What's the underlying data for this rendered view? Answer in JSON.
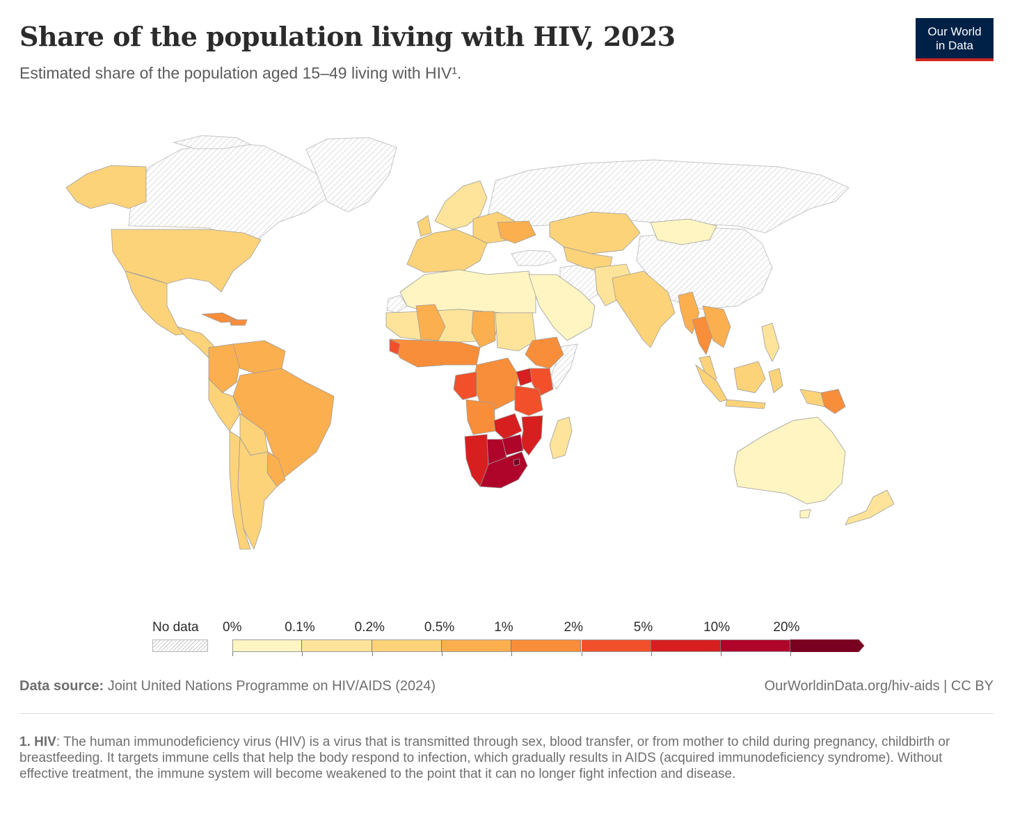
{
  "header": {
    "title": "Share of the population living with HIV, 2023",
    "subtitle": "Estimated share of the population aged 15–49 living with HIV¹."
  },
  "logo": {
    "line1": "Our World",
    "line2": "in Data"
  },
  "colors": {
    "no_data": "#e6e6e6",
    "bins": [
      "#fff5c2",
      "#fee49a",
      "#fdd37a",
      "#fcaf4f",
      "#f98e3a",
      "#f1502b",
      "#d71f1f",
      "#b0052a",
      "#790021"
    ],
    "border": "#b5b5b5"
  },
  "legend": {
    "no_data_label": "No data",
    "ticks": [
      "0%",
      "0.1%",
      "0.2%",
      "0.5%",
      "1%",
      "2%",
      "5%",
      "10%",
      "20%"
    ]
  },
  "map_data": {
    "no_data_regions": [
      "Canada",
      "Greenland",
      "Russia",
      "China",
      "Turkey",
      "Iran",
      "Somalia"
    ],
    "regions": [
      {
        "name": "United States",
        "bin": 2
      },
      {
        "name": "Alaska",
        "bin": 2
      },
      {
        "name": "Mexico",
        "bin": 2
      },
      {
        "name": "Central America",
        "bin": 2
      },
      {
        "name": "Caribbean",
        "bin": 4
      },
      {
        "name": "Venezuela & Guyanas",
        "bin": 3
      },
      {
        "name": "Colombia",
        "bin": 3
      },
      {
        "name": "Peru",
        "bin": 2
      },
      {
        "name": "Brazil",
        "bin": 3
      },
      {
        "name": "Bolivia",
        "bin": 2
      },
      {
        "name": "Paraguay & Uruguay",
        "bin": 3
      },
      {
        "name": "Argentina",
        "bin": 2
      },
      {
        "name": "Chile",
        "bin": 2
      },
      {
        "name": "Western Europe",
        "bin": 2
      },
      {
        "name": "Scandinavia",
        "bin": 1
      },
      {
        "name": "Eastern Europe",
        "bin": 2
      },
      {
        "name": "Ukraine",
        "bin": 3
      },
      {
        "name": "Kazakhstan",
        "bin": 2
      },
      {
        "name": "Mongolia",
        "bin": 0
      },
      {
        "name": "North Africa",
        "bin": 0
      },
      {
        "name": "Arabian Peninsula",
        "bin": 0
      },
      {
        "name": "Sahel",
        "bin": 1
      },
      {
        "name": "Mali",
        "bin": 3
      },
      {
        "name": "Chad",
        "bin": 3
      },
      {
        "name": "Sudan",
        "bin": 1
      },
      {
        "name": "West Africa",
        "bin": 4
      },
      {
        "name": "Central Africa",
        "bin": 4
      },
      {
        "name": "Gabon & Congo",
        "bin": 5
      },
      {
        "name": "Ethiopia",
        "bin": 4
      },
      {
        "name": "Uganda",
        "bin": 6
      },
      {
        "name": "Kenya",
        "bin": 5
      },
      {
        "name": "Tanzania",
        "bin": 5
      },
      {
        "name": "Angola",
        "bin": 4
      },
      {
        "name": "Zambia",
        "bin": 6
      },
      {
        "name": "Mozambique",
        "bin": 6
      },
      {
        "name": "Malawi",
        "bin": 6
      },
      {
        "name": "Zimbabwe",
        "bin": 7
      },
      {
        "name": "Namibia",
        "bin": 6
      },
      {
        "name": "Botswana",
        "bin": 7
      },
      {
        "name": "South Africa",
        "bin": 7
      },
      {
        "name": "Eswatini",
        "bin": 8
      },
      {
        "name": "Madagascar",
        "bin": 1
      },
      {
        "name": "Afghanistan & Pakistan",
        "bin": 1
      },
      {
        "name": "India",
        "bin": 2
      },
      {
        "name": "Myanmar",
        "bin": 3
      },
      {
        "name": "Thailand",
        "bin": 4
      },
      {
        "name": "Indochina",
        "bin": 3
      },
      {
        "name": "Malaysia",
        "bin": 2
      },
      {
        "name": "Indonesia",
        "bin": 2
      },
      {
        "name": "Philippines",
        "bin": 1
      },
      {
        "name": "Papua New Guinea",
        "bin": 4
      },
      {
        "name": "Australia",
        "bin": 0
      },
      {
        "name": "New Zealand",
        "bin": 1
      }
    ]
  },
  "footer": {
    "source_label": "Data source:",
    "source_text": "Joint United Nations Programme on HIV/AIDS (2024)",
    "url": "OurWorldinData.org/hiv-aids | CC BY",
    "note_label": "1. HIV",
    "note_text": ": The human immunodeficiency virus (HIV) is a virus that is transmitted through sex, blood transfer, or from mother to child during pregnancy, childbirth or breastfeeding. It targets immune cells that help the body respond to infection, which gradually results in AIDS (acquired immunodeficiency syndrome). Without effective treatment, the immune system will become weakened to the point that it can no longer fight infection and disease."
  }
}
